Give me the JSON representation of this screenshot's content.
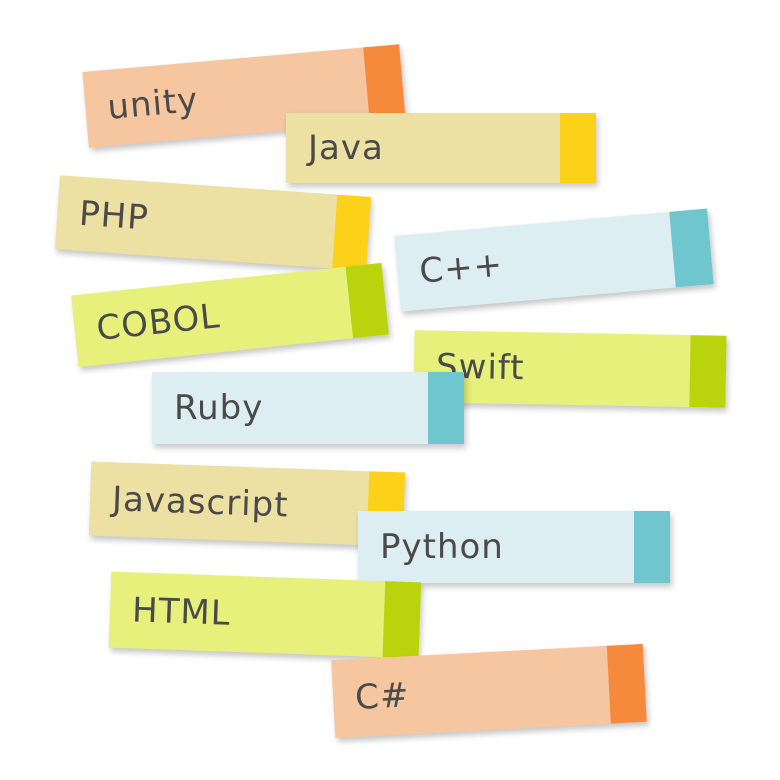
{
  "notes": [
    {
      "key": "unity",
      "label": "unity",
      "color": "#f6c6a0",
      "tab_color": "#f58a3c"
    },
    {
      "key": "java",
      "label": "Java",
      "color": "#ece1a2",
      "tab_color": "#fbd11a"
    },
    {
      "key": "php",
      "label": "PHP",
      "color": "#ece1a2",
      "tab_color": "#fbd11a"
    },
    {
      "key": "cpp",
      "label": "C++",
      "color": "#ddeef2",
      "tab_color": "#6fc6cf"
    },
    {
      "key": "cobol",
      "label": "COBOL",
      "color": "#e6f07a",
      "tab_color": "#b9d30d"
    },
    {
      "key": "swift",
      "label": "Swift",
      "color": "#e6f07a",
      "tab_color": "#b9d30d"
    },
    {
      "key": "ruby",
      "label": "Ruby",
      "color": "#ddeef2",
      "tab_color": "#6fc6cf"
    },
    {
      "key": "javascript",
      "label": "Javascript",
      "color": "#ece1a2",
      "tab_color": "#fbd11a"
    },
    {
      "key": "python",
      "label": "Python",
      "color": "#ddeef2",
      "tab_color": "#6fc6cf"
    },
    {
      "key": "html",
      "label": "HTML",
      "color": "#e6f07a",
      "tab_color": "#b9d30d"
    },
    {
      "key": "csharp",
      "label": "C#",
      "color": "#f6c6a0",
      "tab_color": "#f58a3c"
    }
  ]
}
